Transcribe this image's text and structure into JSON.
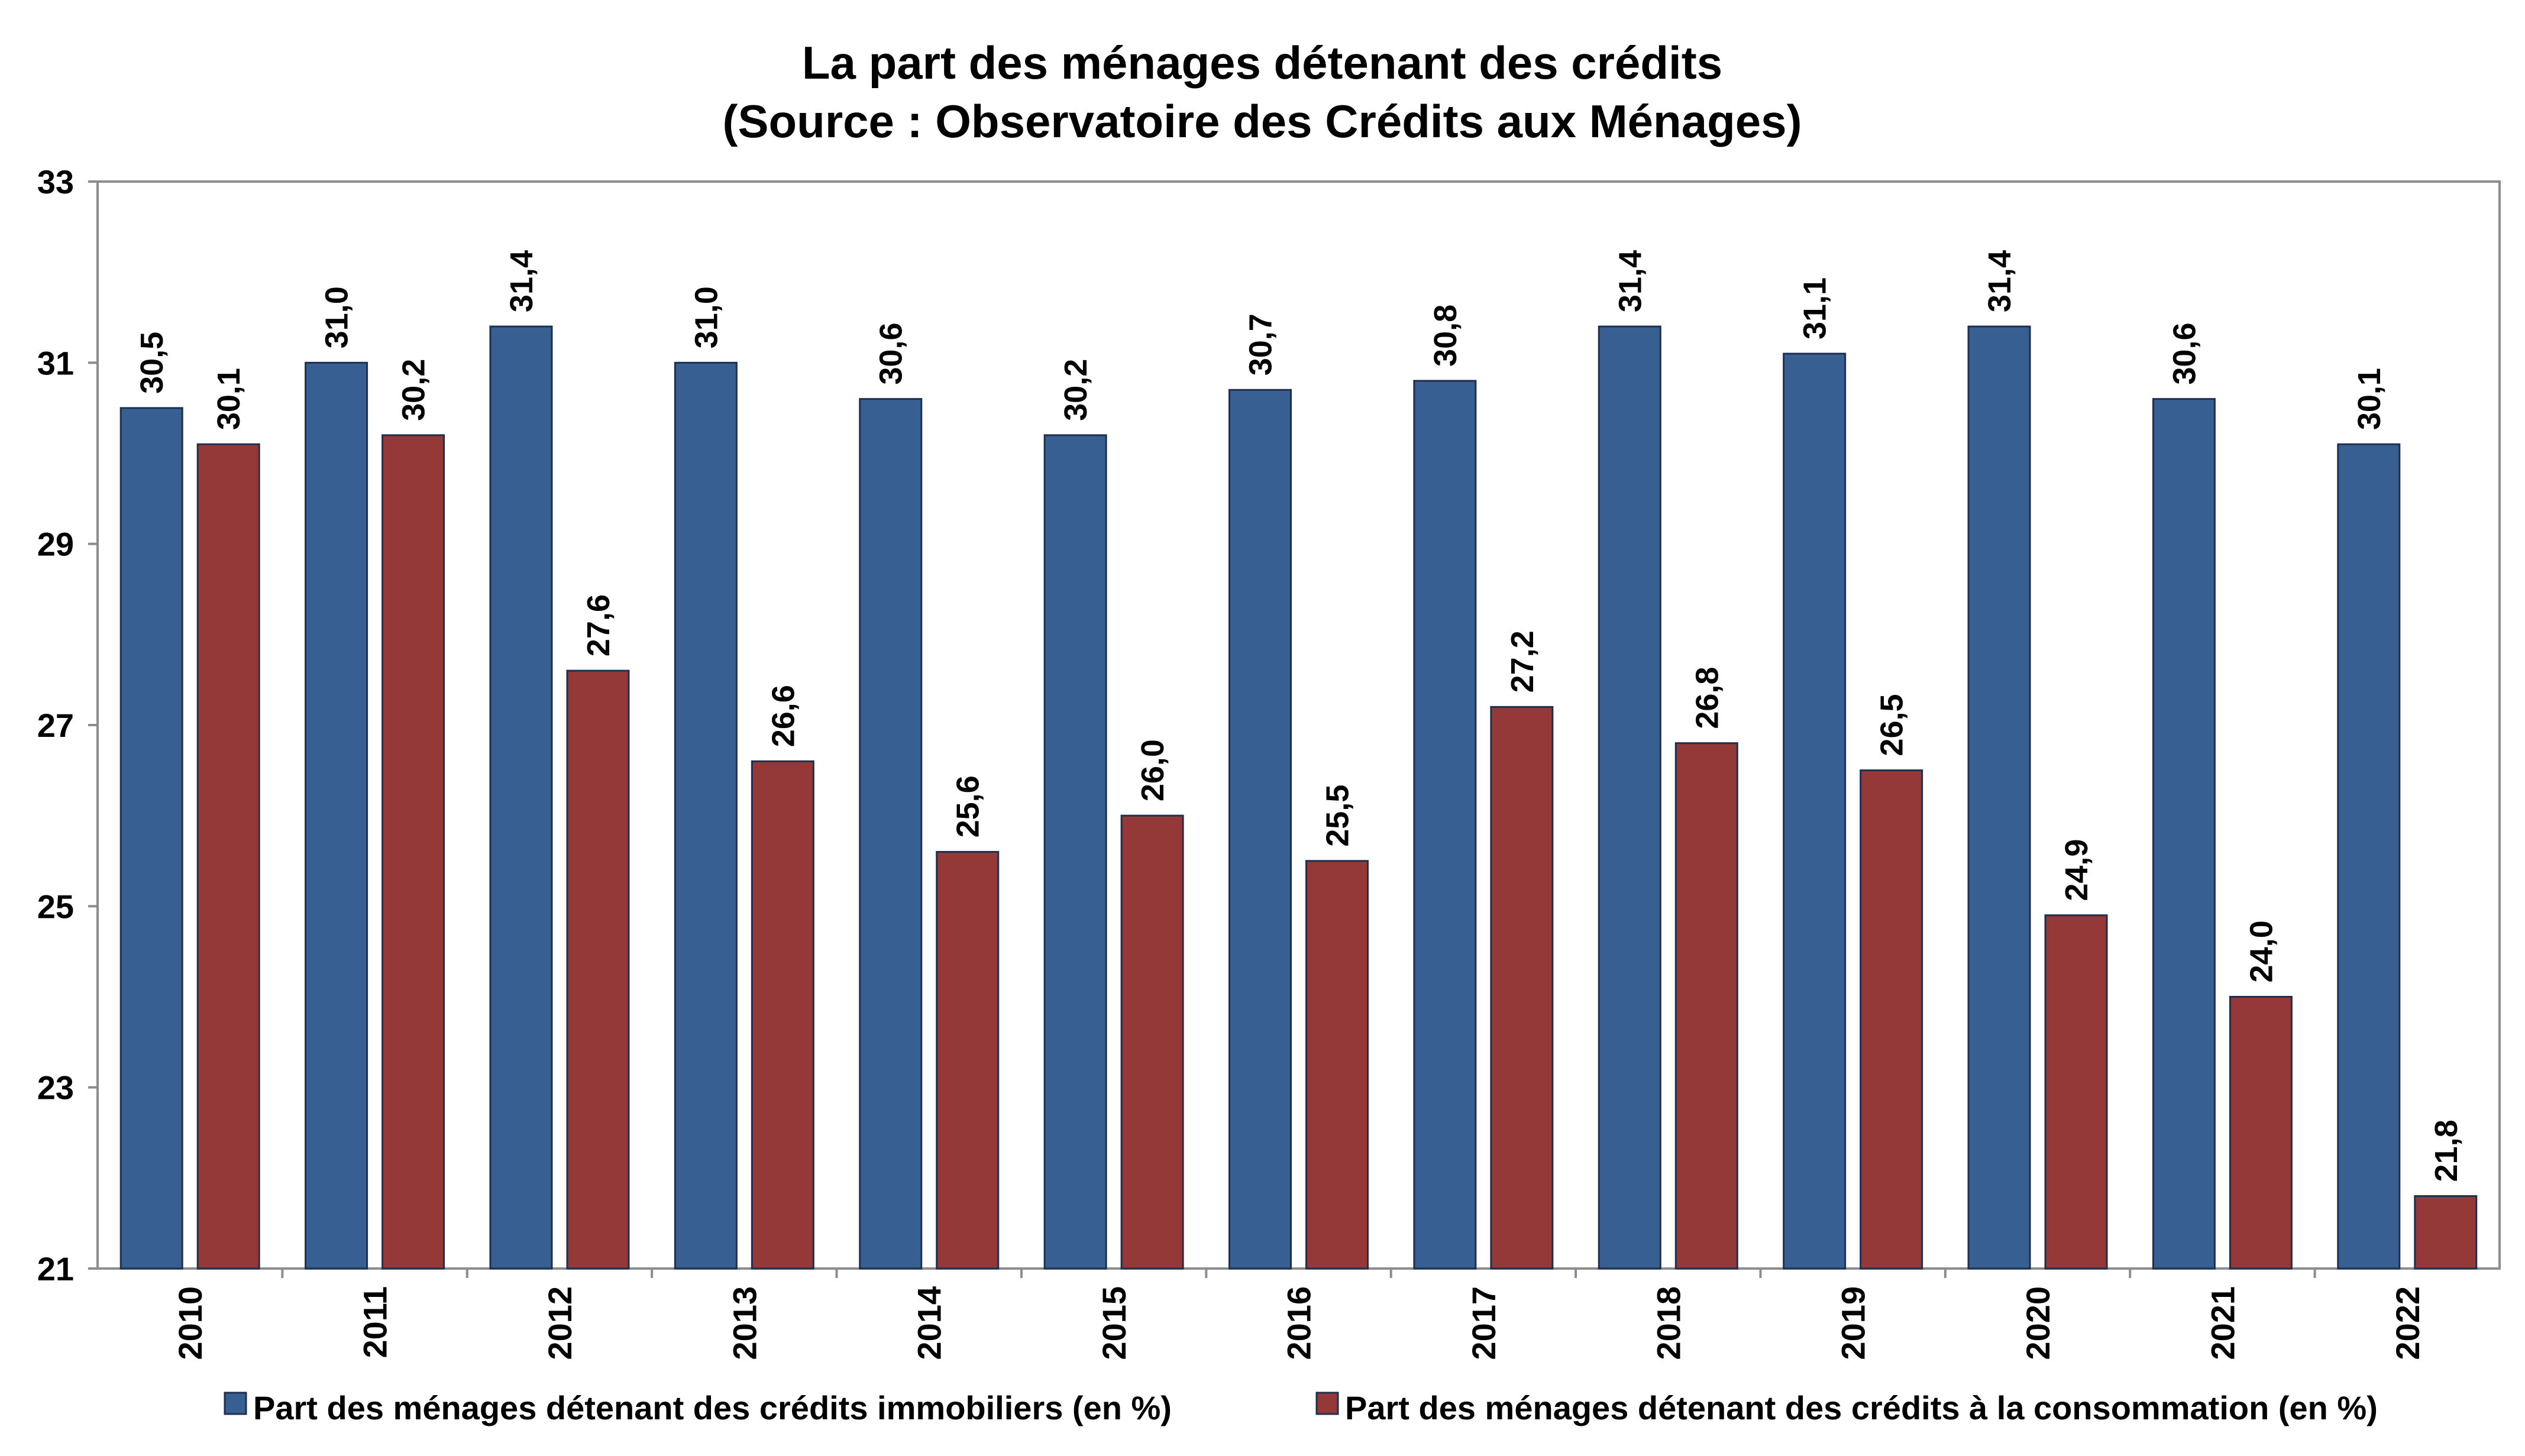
{
  "chart_data": {
    "type": "bar",
    "title": "La part des ménages détenant des crédits",
    "subtitle": "(Source : Observatoire des Crédits aux Ménages)",
    "xlabel": "",
    "ylabel": "",
    "ylim": [
      21,
      33
    ],
    "yticks": [
      21,
      23,
      25,
      27,
      29,
      31,
      33
    ],
    "grid": false,
    "legend_position": "bottom",
    "categories": [
      "2010",
      "2011",
      "2012",
      "2013",
      "2014",
      "2015",
      "2016",
      "2017",
      "2018",
      "2019",
      "2020",
      "2021",
      "2022"
    ],
    "series": [
      {
        "name": "Part des ménages détenant des crédits immobiliers (en %)",
        "color": "#375f92",
        "values": [
          30.5,
          31.0,
          31.4,
          31.0,
          30.6,
          30.2,
          30.7,
          30.8,
          31.4,
          31.1,
          31.4,
          30.6,
          30.1
        ],
        "labels": [
          "30,5",
          "31,0",
          "31,4",
          "31,0",
          "30,6",
          "30,2",
          "30,7",
          "30,8",
          "31,4",
          "31,1",
          "31,4",
          "30,6",
          "30,1"
        ]
      },
      {
        "name": "Part des ménages détenant des crédits à la consommation (en %)",
        "color": "#943838",
        "values": [
          30.1,
          30.2,
          27.6,
          26.6,
          25.6,
          26.0,
          25.5,
          27.2,
          26.8,
          26.5,
          24.9,
          24.0,
          21.8
        ],
        "labels": [
          "30,1",
          "30,2",
          "27,6",
          "26,6",
          "25,6",
          "26,0",
          "25,5",
          "27,2",
          "26,8",
          "26,5",
          "24,9",
          "24,0",
          "21,8"
        ]
      }
    ]
  }
}
